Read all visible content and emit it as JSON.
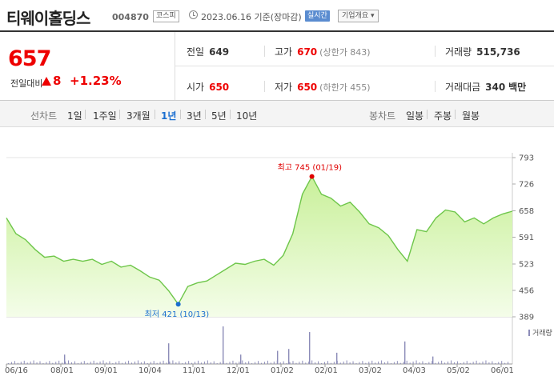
{
  "header": {
    "stock_name": "티웨이홀딩스",
    "code": "004870",
    "market": "코스피",
    "date": "2023.06.16 기준(장마감)",
    "realtime_label": "실시간",
    "company_info_label": "기업개요 ▾"
  },
  "quote": {
    "price": "657",
    "prev_label": "전일대비",
    "change": "8",
    "change_pct": "+1.23%",
    "prev_close_label": "전일",
    "prev_close": "649",
    "high_label": "고가",
    "high": "670",
    "upper_limit": "(상한가 843)",
    "volume_label": "거래량",
    "volume": "515,736",
    "open_label": "시가",
    "open": "650",
    "low_label": "저가",
    "low": "650",
    "lower_limit": "(하한가 455)",
    "amount_label": "거래대금",
    "amount": "340",
    "amount_unit": "백만"
  },
  "tabs": {
    "line_chart_label": "선차트",
    "line_periods": [
      "1일",
      "1주일",
      "3개월",
      "1년",
      "3년",
      "5년",
      "10년"
    ],
    "active_period": "1년",
    "candle_chart_label": "봉차트",
    "candle_periods": [
      "일봉",
      "주봉",
      "월봉"
    ]
  },
  "chart_data": {
    "type": "area",
    "ylim": [
      389,
      793
    ],
    "y_ticks": [
      793,
      726,
      658,
      591,
      523,
      456,
      389
    ],
    "x_tick_labels": [
      "06/16",
      "08/01",
      "09/01",
      "10/04",
      "11/01",
      "12/01",
      "01/02",
      "02/01",
      "03/02",
      "04/03",
      "05/02",
      "06/01"
    ],
    "volume_label": "거래량",
    "high_annotation": "최고 745 (01/19)",
    "low_annotation": "최저 421 (10/13)",
    "colors": {
      "line": "#6ec64a",
      "fill_top": "#c9f09a",
      "fill_bottom": "#f4fde9",
      "high": "#e00000",
      "low": "#1a6ed0",
      "volume": "#8c8cb8"
    },
    "series": [
      {
        "x": "06/16",
        "y": 640
      },
      {
        "x": "06/20",
        "y": 600
      },
      {
        "x": "06/24",
        "y": 585
      },
      {
        "x": "06/30",
        "y": 560
      },
      {
        "x": "07/06",
        "y": 540
      },
      {
        "x": "07/12",
        "y": 543
      },
      {
        "x": "07/18",
        "y": 530
      },
      {
        "x": "07/24",
        "y": 535
      },
      {
        "x": "08/01",
        "y": 530
      },
      {
        "x": "08/08",
        "y": 535
      },
      {
        "x": "08/15",
        "y": 522
      },
      {
        "x": "08/22",
        "y": 530
      },
      {
        "x": "09/01",
        "y": 515
      },
      {
        "x": "09/08",
        "y": 520
      },
      {
        "x": "09/15",
        "y": 506
      },
      {
        "x": "09/22",
        "y": 490
      },
      {
        "x": "09/28",
        "y": 482
      },
      {
        "x": "10/04",
        "y": 455
      },
      {
        "x": "10/13",
        "y": 421
      },
      {
        "x": "10/20",
        "y": 466
      },
      {
        "x": "10/26",
        "y": 475
      },
      {
        "x": "11/01",
        "y": 480
      },
      {
        "x": "11/08",
        "y": 495
      },
      {
        "x": "11/15",
        "y": 510
      },
      {
        "x": "11/22",
        "y": 525
      },
      {
        "x": "12/01",
        "y": 522
      },
      {
        "x": "12/08",
        "y": 530
      },
      {
        "x": "12/15",
        "y": 535
      },
      {
        "x": "12/22",
        "y": 520
      },
      {
        "x": "12/29",
        "y": 545
      },
      {
        "x": "01/02",
        "y": 600
      },
      {
        "x": "01/09",
        "y": 700
      },
      {
        "x": "01/19",
        "y": 745
      },
      {
        "x": "01/26",
        "y": 700
      },
      {
        "x": "02/01",
        "y": 690
      },
      {
        "x": "02/08",
        "y": 670
      },
      {
        "x": "02/15",
        "y": 680
      },
      {
        "x": "02/22",
        "y": 655
      },
      {
        "x": "03/02",
        "y": 625
      },
      {
        "x": "03/09",
        "y": 615
      },
      {
        "x": "03/16",
        "y": 595
      },
      {
        "x": "03/23",
        "y": 560
      },
      {
        "x": "03/30",
        "y": 530
      },
      {
        "x": "04/03",
        "y": 610
      },
      {
        "x": "04/10",
        "y": 605
      },
      {
        "x": "04/17",
        "y": 640
      },
      {
        "x": "04/24",
        "y": 660
      },
      {
        "x": "05/02",
        "y": 655
      },
      {
        "x": "05/08",
        "y": 630
      },
      {
        "x": "05/15",
        "y": 640
      },
      {
        "x": "05/22",
        "y": 625
      },
      {
        "x": "06/01",
        "y": 640
      },
      {
        "x": "06/08",
        "y": 650
      },
      {
        "x": "06/16",
        "y": 657
      }
    ],
    "volume_spikes": [
      0.25,
      0.55,
      1.0,
      0.25,
      0.35,
      0.4,
      0.85,
      0.3,
      0.6,
      0.2
    ]
  }
}
